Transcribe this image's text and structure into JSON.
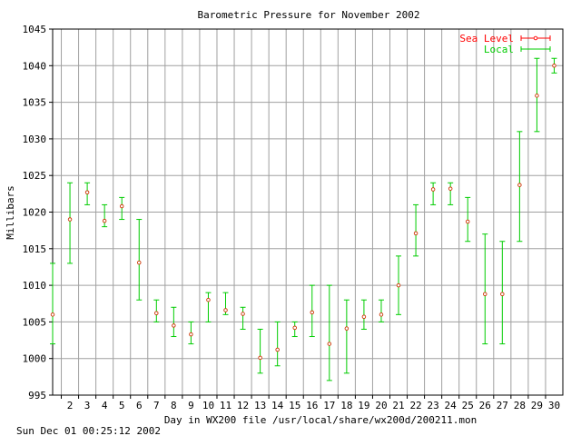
{
  "chart_data": {
    "type": "line",
    "title": "Barometric Pressure for November 2002",
    "xlabel": "Day in WX200 file /usr/local/share/wx200d/200211.mon",
    "ylabel": "Millibars",
    "footer": "Sun Dec 01 00:25:12 2002",
    "xlim": [
      1,
      30.5
    ],
    "ylim": [
      995,
      1045
    ],
    "x_ticks": [
      2,
      3,
      4,
      5,
      6,
      7,
      8,
      9,
      10,
      11,
      12,
      13,
      14,
      15,
      16,
      17,
      18,
      19,
      20,
      21,
      22,
      23,
      24,
      25,
      26,
      27,
      28,
      29,
      30
    ],
    "y_ticks": [
      995,
      1000,
      1005,
      1010,
      1015,
      1020,
      1025,
      1030,
      1035,
      1040,
      1045
    ],
    "grid": true,
    "legend_position": "top-right",
    "series": [
      {
        "name": "Sea Level",
        "color": "#ff0000",
        "points": []
      },
      {
        "name": "Local",
        "color": "#00cc00",
        "style": "errorbar",
        "points": [
          {
            "x": 1.0,
            "y": 1006,
            "low": 1002,
            "high": 1013
          },
          {
            "x": 2.0,
            "y": 1019,
            "low": 1013,
            "high": 1024
          },
          {
            "x": 3.0,
            "y": 1022.7,
            "low": 1021,
            "high": 1024
          },
          {
            "x": 4.0,
            "y": 1018.8,
            "low": 1018,
            "high": 1021
          },
          {
            "x": 5.0,
            "y": 1020.8,
            "low": 1019,
            "high": 1022
          },
          {
            "x": 6.0,
            "y": 1013.1,
            "low": 1008,
            "high": 1019
          },
          {
            "x": 7.0,
            "y": 1006.2,
            "low": 1005,
            "high": 1008
          },
          {
            "x": 8.0,
            "y": 1004.5,
            "low": 1003,
            "high": 1007
          },
          {
            "x": 9.0,
            "y": 1003.3,
            "low": 1002,
            "high": 1005
          },
          {
            "x": 10.0,
            "y": 1008,
            "low": 1005,
            "high": 1009
          },
          {
            "x": 11.0,
            "y": 1006.6,
            "low": 1006,
            "high": 1009
          },
          {
            "x": 12.0,
            "y": 1006.1,
            "low": 1004,
            "high": 1007
          },
          {
            "x": 13.0,
            "y": 1000.1,
            "low": 998,
            "high": 1004
          },
          {
            "x": 14.0,
            "y": 1001.2,
            "low": 999,
            "high": 1005
          },
          {
            "x": 15.0,
            "y": 1004.2,
            "low": 1003,
            "high": 1005
          },
          {
            "x": 16.0,
            "y": 1006.3,
            "low": 1003,
            "high": 1010
          },
          {
            "x": 17.0,
            "y": 1002,
            "low": 997,
            "high": 1010
          },
          {
            "x": 18.0,
            "y": 1004.1,
            "low": 998,
            "high": 1008
          },
          {
            "x": 19.0,
            "y": 1005.7,
            "low": 1004,
            "high": 1008
          },
          {
            "x": 20.0,
            "y": 1006,
            "low": 1005,
            "high": 1008
          },
          {
            "x": 21.0,
            "y": 1010,
            "low": 1006,
            "high": 1014
          },
          {
            "x": 22.0,
            "y": 1017.1,
            "low": 1014,
            "high": 1021
          },
          {
            "x": 23.0,
            "y": 1023.1,
            "low": 1021,
            "high": 1024
          },
          {
            "x": 24.0,
            "y": 1023.2,
            "low": 1021,
            "high": 1024
          },
          {
            "x": 25.0,
            "y": 1018.7,
            "low": 1016,
            "high": 1022
          },
          {
            "x": 26.0,
            "y": 1008.8,
            "low": 1002,
            "high": 1017
          },
          {
            "x": 27.0,
            "y": 1008.8,
            "low": 1002,
            "high": 1016
          },
          {
            "x": 28.0,
            "y": 1023.7,
            "low": 1016,
            "high": 1031
          },
          {
            "x": 29.0,
            "y": 1035.9,
            "low": 1031,
            "high": 1041
          },
          {
            "x": 30.0,
            "y": 1040,
            "low": 1039,
            "high": 1041
          }
        ]
      }
    ]
  }
}
